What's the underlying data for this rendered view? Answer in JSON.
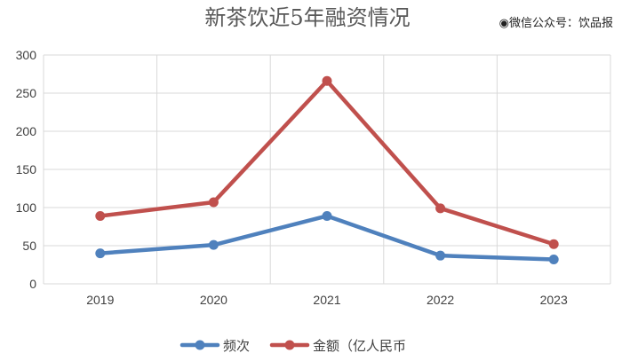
{
  "watermark": "◉微信公众号：饮品报",
  "chart_data": {
    "type": "line",
    "title": "新茶饮近5年融资情况",
    "xlabel": "",
    "ylabel": "",
    "categories": [
      "2019",
      "2020",
      "2021",
      "2022",
      "2023"
    ],
    "ylim": [
      0,
      300
    ],
    "yticks": [
      "0",
      "50",
      "100",
      "150",
      "200",
      "250",
      "300"
    ],
    "grid": true,
    "legend_position": "bottom",
    "series": [
      {
        "name": "频次",
        "color": "#4f81bd",
        "values": [
          40,
          51,
          89,
          37,
          32
        ]
      },
      {
        "name": "金额（亿人民币",
        "color": "#c0504d",
        "values": [
          89,
          107,
          266,
          99,
          52
        ]
      }
    ]
  }
}
